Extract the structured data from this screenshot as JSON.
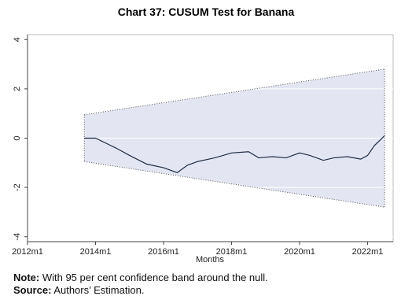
{
  "chart_data": {
    "type": "line",
    "title": "Chart 37: CUSUM Test for Banana",
    "xlabel": "Months",
    "x": [
      2013.67,
      2014.0,
      2014.3,
      2014.6,
      2015.0,
      2015.5,
      2016.0,
      2016.4,
      2016.7,
      2017.0,
      2017.5,
      2018.0,
      2018.5,
      2018.8,
      2019.2,
      2019.6,
      2020.0,
      2020.3,
      2020.7,
      2021.0,
      2021.4,
      2021.8,
      2022.0,
      2022.2,
      2022.35,
      2022.5
    ],
    "values": [
      0,
      0,
      -0.2,
      -0.4,
      -0.7,
      -1.05,
      -1.2,
      -1.4,
      -1.1,
      -0.95,
      -0.8,
      -0.6,
      -0.55,
      -0.8,
      -0.75,
      -0.8,
      -0.6,
      -0.7,
      -0.9,
      -0.8,
      -0.75,
      -0.85,
      -0.7,
      -0.3,
      -0.1,
      0.1
    ],
    "color": "#1f2a44",
    "band": {
      "x": [
        2013.67,
        2022.5
      ],
      "upper": [
        0.95,
        2.8
      ],
      "lower": [
        -0.95,
        -2.8
      ],
      "color": "#e3e6f2"
    },
    "xlim": [
      2012,
      2022.75
    ],
    "xticks": [
      {
        "value": 2012,
        "label": "2012m1"
      },
      {
        "value": 2014,
        "label": "2014m1"
      },
      {
        "value": 2016,
        "label": "2016m1"
      },
      {
        "value": 2018,
        "label": "2018m1"
      },
      {
        "value": 2020,
        "label": "2020m1"
      },
      {
        "value": 2022,
        "label": "2022m1"
      }
    ],
    "ylim": [
      -4.2,
      4.2
    ],
    "yticks": [
      -4,
      -2,
      0,
      2,
      4
    ],
    "grid": true
  },
  "notes": {
    "note_label": "Note:",
    "note_text": "With 95 per cent confidence band around the null.",
    "source_label": "Source:",
    "source_text": "Authors’ Estimation."
  }
}
